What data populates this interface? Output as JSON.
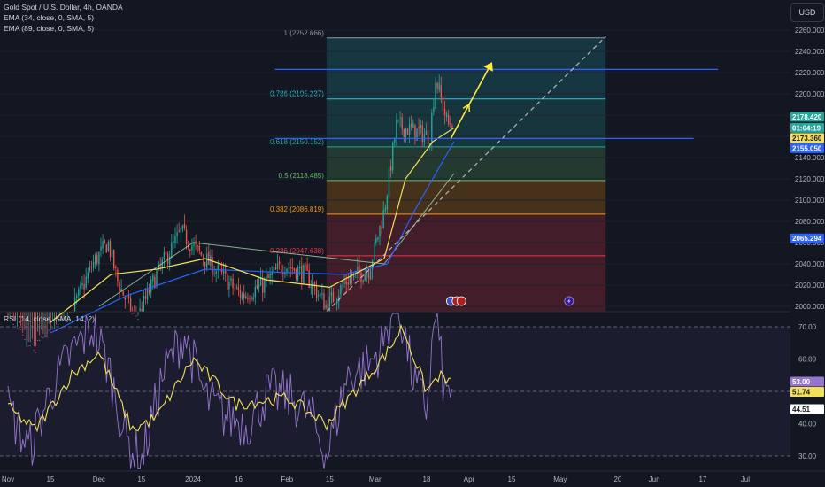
{
  "legend": {
    "symbol": "Gold Spot / U.S. Dollar, 4h, OANDA",
    "ema1": "EMA (34, close, 0, SMA, 5)",
    "ema2": "EMA (89, close, 0, SMA, 5)",
    "rsi": "RSI (14, close, SMA, 14, 2)"
  },
  "currency_button": "USD",
  "colors": {
    "background": "#131722",
    "candle_up": "#26a69a",
    "candle_down": "#ef5350",
    "ema34": "#f2e05a",
    "ema89": "#2962ff",
    "sma200": "#a5d6a7",
    "rsi": "#9575cd",
    "rsi_ma": "#f2e05a",
    "projection_arrow": "#ffeb3b",
    "horizontal_lines": "#2962ff"
  },
  "chart_data": {
    "type": "candlestick",
    "symbol": "Gold Spot / U.S. Dollar",
    "timeframe": "4h",
    "exchange": "OANDA",
    "ylim": [
      1990,
      2270
    ],
    "y_ticks": [
      "2260.000",
      "2240.000",
      "2220.000",
      "2200.000",
      "2180.000",
      "2160.000",
      "2140.000",
      "2120.000",
      "2100.000",
      "2080.000",
      "2060.000",
      "2040.000",
      "2020.000",
      "2000.000"
    ],
    "x_ticks": [
      "Nov",
      "15",
      "Dec",
      "15",
      "2024",
      "16",
      "Feb",
      "15",
      "Mar",
      "18",
      "Apr",
      "15",
      "May",
      "20",
      "Jun",
      "17",
      "Jul"
    ],
    "price_path": [
      [
        "2023-11-01",
        1985
      ],
      [
        "2023-11-08",
        1955
      ],
      [
        "2023-11-15",
        1970
      ],
      [
        "2023-11-22",
        1995
      ],
      [
        "2023-11-29",
        2040
      ],
      [
        "2023-12-04",
        2060
      ],
      [
        "2023-12-07",
        2025
      ],
      [
        "2023-12-13",
        1985
      ],
      [
        "2023-12-20",
        2030
      ],
      [
        "2023-12-28",
        2070
      ],
      [
        "2024-01-03",
        2050
      ],
      [
        "2024-01-10",
        2030
      ],
      [
        "2024-01-17",
        2010
      ],
      [
        "2024-01-24",
        2020
      ],
      [
        "2024-01-31",
        2040
      ],
      [
        "2024-02-07",
        2030
      ],
      [
        "2024-02-14",
        2000
      ],
      [
        "2024-02-21",
        2025
      ],
      [
        "2024-02-28",
        2035
      ],
      [
        "2024-03-04",
        2090
      ],
      [
        "2024-03-08",
        2170
      ],
      [
        "2024-03-14",
        2165
      ],
      [
        "2024-03-19",
        2160
      ],
      [
        "2024-03-21",
        2215
      ],
      [
        "2024-03-25",
        2170
      ],
      [
        "2024-03-27",
        2178
      ]
    ],
    "ema34_path": [
      [
        "2023-11-15",
        1985
      ],
      [
        "2023-12-05",
        2030
      ],
      [
        "2023-12-20",
        2035
      ],
      [
        "2024-01-05",
        2045
      ],
      [
        "2024-01-25",
        2025
      ],
      [
        "2024-02-15",
        2018
      ],
      [
        "2024-03-04",
        2045
      ],
      [
        "2024-03-11",
        2120
      ],
      [
        "2024-03-20",
        2155
      ],
      [
        "2024-03-27",
        2168
      ]
    ],
    "ema89_path": [
      [
        "2023-11-15",
        1975
      ],
      [
        "2023-12-10",
        2010
      ],
      [
        "2024-01-05",
        2035
      ],
      [
        "2024-01-30",
        2032
      ],
      [
        "2024-02-20",
        2030
      ],
      [
        "2024-03-05",
        2040
      ],
      [
        "2024-03-14",
        2090
      ],
      [
        "2024-03-27",
        2155
      ]
    ],
    "sma200_path": [
      [
        "2023-12-01",
        2000
      ],
      [
        "2024-01-01",
        2060
      ],
      [
        "2024-02-01",
        2050
      ],
      [
        "2024-03-04",
        2040
      ],
      [
        "2024-03-27",
        2125
      ]
    ],
    "fibonacci": [
      {
        "label": "1 (2252.666)",
        "price": 2252.666
      },
      {
        "label": "0.786 (2195.237)",
        "price": 2195.237,
        "color": "#26c6da"
      },
      {
        "label": "0.618 (2150.152)",
        "price": 2150.152,
        "color": "#26a69a"
      },
      {
        "label": "0.5 (2118.485)",
        "price": 2118.485,
        "color": "#66bb6a"
      },
      {
        "label": "0.382 (2086.819)",
        "price": 2086.819,
        "color": "#ff9800"
      },
      {
        "label": "0.236 (2047.638)",
        "price": 2047.638,
        "color": "#f23645"
      }
    ],
    "fib_range": [
      "2024-02-14",
      "2024-05-16"
    ],
    "horizontal_lines": [
      {
        "price": 2223,
        "from": "2024-01-28",
        "to": "2024-06-22"
      },
      {
        "price": 2158,
        "from": "2024-01-28",
        "to": "2024-06-14"
      }
    ],
    "trend_line": {
      "from": [
        "2024-02-14",
        1995
      ],
      "to": [
        "2024-05-16",
        2254
      ]
    },
    "projection": [
      [
        "2024-03-26",
        2158
      ],
      [
        "2024-04-01",
        2190
      ],
      [
        "2024-04-08",
        2227
      ]
    ],
    "price_tags": [
      {
        "text": "2178.420",
        "bg": "#26a69a",
        "fg": "#ffffff",
        "price": 2178.42
      },
      {
        "text": "01:04:19",
        "bg": "#26a69a",
        "fg": "#ffffff",
        "price": 2168
      },
      {
        "text": "2173.360",
        "bg": "#f2e05a",
        "fg": "#131722",
        "price": 2160
      },
      {
        "text": "2155.050",
        "bg": "#2962ff",
        "fg": "#ffffff",
        "price": 2149
      },
      {
        "text": "2065.294",
        "bg": "#2962ff",
        "fg": "#ffffff",
        "price": 2064
      }
    ],
    "rsi": {
      "ylim": [
        25,
        78
      ],
      "y_ticks": [
        "70.00",
        "60.00",
        "50.00",
        "40.00",
        "30.00"
      ],
      "levels": [
        70,
        50,
        30
      ],
      "rsi_path": [
        [
          "2023-11-01",
          45
        ],
        [
          "2023-11-08",
          32
        ],
        [
          "2023-11-15",
          50
        ],
        [
          "2023-11-22",
          62
        ],
        [
          "2023-11-29",
          70
        ],
        [
          "2023-12-04",
          58
        ],
        [
          "2023-12-10",
          35
        ],
        [
          "2023-12-15",
          28
        ],
        [
          "2023-12-22",
          55
        ],
        [
          "2023-12-29",
          68
        ],
        [
          "2024-01-05",
          48
        ],
        [
          "2024-01-12",
          42
        ],
        [
          "2024-01-19",
          40
        ],
        [
          "2024-01-26",
          50
        ],
        [
          "2024-02-02",
          48
        ],
        [
          "2024-02-09",
          42
        ],
        [
          "2024-02-14",
          30
        ],
        [
          "2024-02-21",
          55
        ],
        [
          "2024-02-28",
          58
        ],
        [
          "2024-03-04",
          65
        ],
        [
          "2024-03-08",
          80
        ],
        [
          "2024-03-14",
          52
        ],
        [
          "2024-03-18",
          45
        ],
        [
          "2024-03-21",
          75
        ],
        [
          "2024-03-24",
          48
        ],
        [
          "2024-03-27",
          53
        ]
      ],
      "rsi_ma_path": [
        [
          "2023-11-01",
          45
        ],
        [
          "2023-11-10",
          38
        ],
        [
          "2023-11-22",
          55
        ],
        [
          "2023-12-01",
          62
        ],
        [
          "2023-12-12",
          38
        ],
        [
          "2023-12-20",
          42
        ],
        [
          "2024-01-01",
          60
        ],
        [
          "2024-01-15",
          46
        ],
        [
          "2024-02-01",
          48
        ],
        [
          "2024-02-14",
          40
        ],
        [
          "2024-02-25",
          52
        ],
        [
          "2024-03-05",
          62
        ],
        [
          "2024-03-10",
          70
        ],
        [
          "2024-03-18",
          50
        ],
        [
          "2024-03-22",
          55
        ],
        [
          "2024-03-27",
          51.74
        ]
      ],
      "tags": [
        {
          "text": "53.00",
          "bg": "#9575cd",
          "fg": "#ffffff",
          "value": 53.0
        },
        {
          "text": "51.74",
          "bg": "#f2e05a",
          "fg": "#131722",
          "value": 51.74
        },
        {
          "text": "44.51",
          "bg": "#ffffff",
          "fg": "#131722",
          "value": 44.51
        }
      ]
    }
  }
}
